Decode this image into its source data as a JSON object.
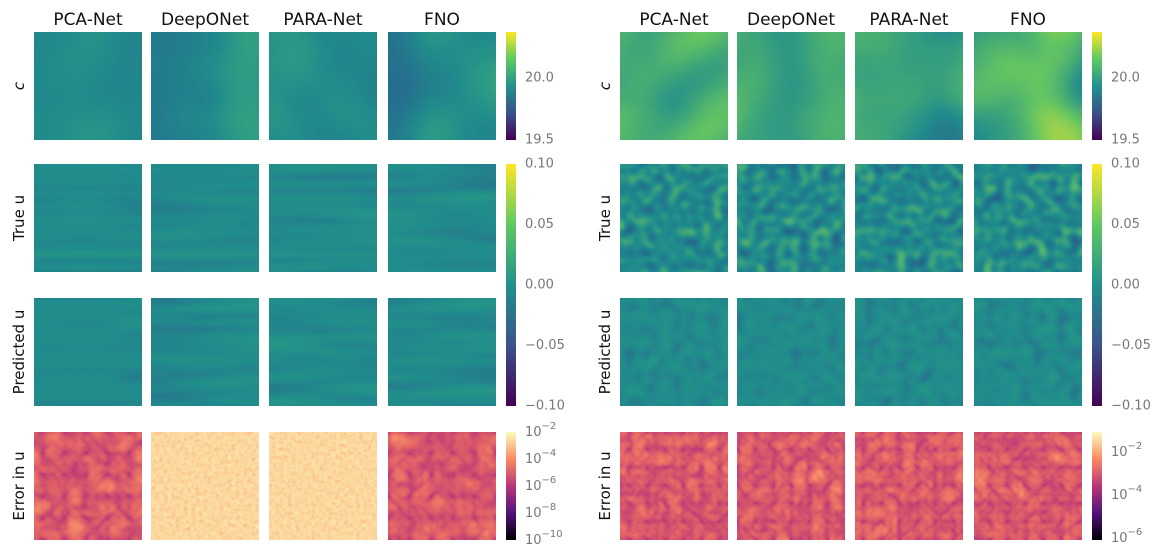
{
  "figures": [
    {
      "column_titles": [
        "PCA-Net",
        "DeepONet",
        "PARA-Net",
        "FNO"
      ],
      "row_labels": [
        "c",
        "True u",
        "Predicted u",
        "Error in u"
      ],
      "colorbars": {
        "c": [
          "20.0",
          "19.5"
        ],
        "u": [
          "0.10",
          "0.05",
          "0.00",
          "−0.05",
          "−0.10"
        ],
        "error": [
          {
            "base": "10",
            "exponent": "−2"
          },
          {
            "base": "10",
            "exponent": "−4"
          },
          {
            "base": "10",
            "exponent": "−6"
          },
          {
            "base": "10",
            "exponent": "−8"
          },
          {
            "base": "10",
            "exponent": "−10"
          }
        ]
      }
    },
    {
      "column_titles": [
        "PCA-Net",
        "DeepONet",
        "PARA-Net",
        "FNO"
      ],
      "row_labels": [
        "c",
        "True u",
        "Predicted u",
        "Error in u"
      ],
      "colorbars": {
        "c": [
          "20.0",
          "19.5"
        ],
        "u": [
          "0.10",
          "0.05",
          "0.00",
          "−0.05",
          "−0.10"
        ],
        "error": [
          {
            "base": "10",
            "exponent": "−2"
          },
          {
            "base": "10",
            "exponent": "−4"
          },
          {
            "base": "10",
            "exponent": "−6"
          }
        ]
      }
    }
  ]
}
